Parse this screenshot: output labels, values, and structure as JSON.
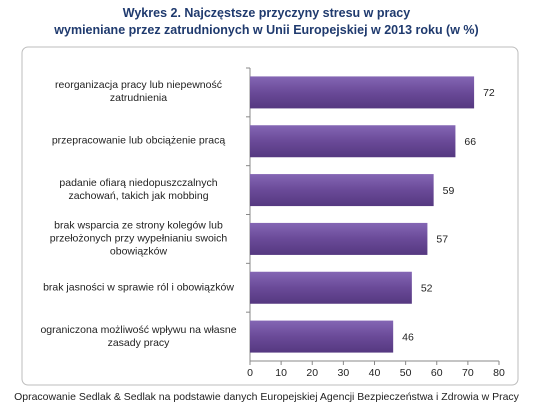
{
  "chart_data": {
    "type": "bar",
    "orientation": "horizontal",
    "title": "Wykres 2. Najczęstsze przyczyny stresu w pracy",
    "subtitle": "wymieniane przez zatrudnionych w Unii Europejskiej w 2013 roku (w %)",
    "categories": [
      "reorganizacja pracy lub niepewność zatrudnienia",
      "przepracowanie lub obciążenie pracą",
      "padanie ofiarą niedopuszczalnych zachowań, takich jak mobbing",
      "brak wsparcia ze strony kolegów lub przełożonych przy wypełnianiu swoich obowiązków",
      "brak jasności w sprawie ról i obowiązków",
      "ograniczona możliwość wpływu na własne zasady pracy"
    ],
    "values": [
      72,
      66,
      59,
      57,
      52,
      46
    ],
    "color": "#6a4a98",
    "xlim": [
      0,
      80
    ],
    "xticks": [
      0,
      10,
      20,
      30,
      40,
      50,
      60,
      70,
      80
    ],
    "grid": false,
    "source": "Opracowanie Sedlak & Sedlak na podstawie danych Europejskiej Agencji Bezpieczeństwa i Zdrowia w Pracy"
  }
}
